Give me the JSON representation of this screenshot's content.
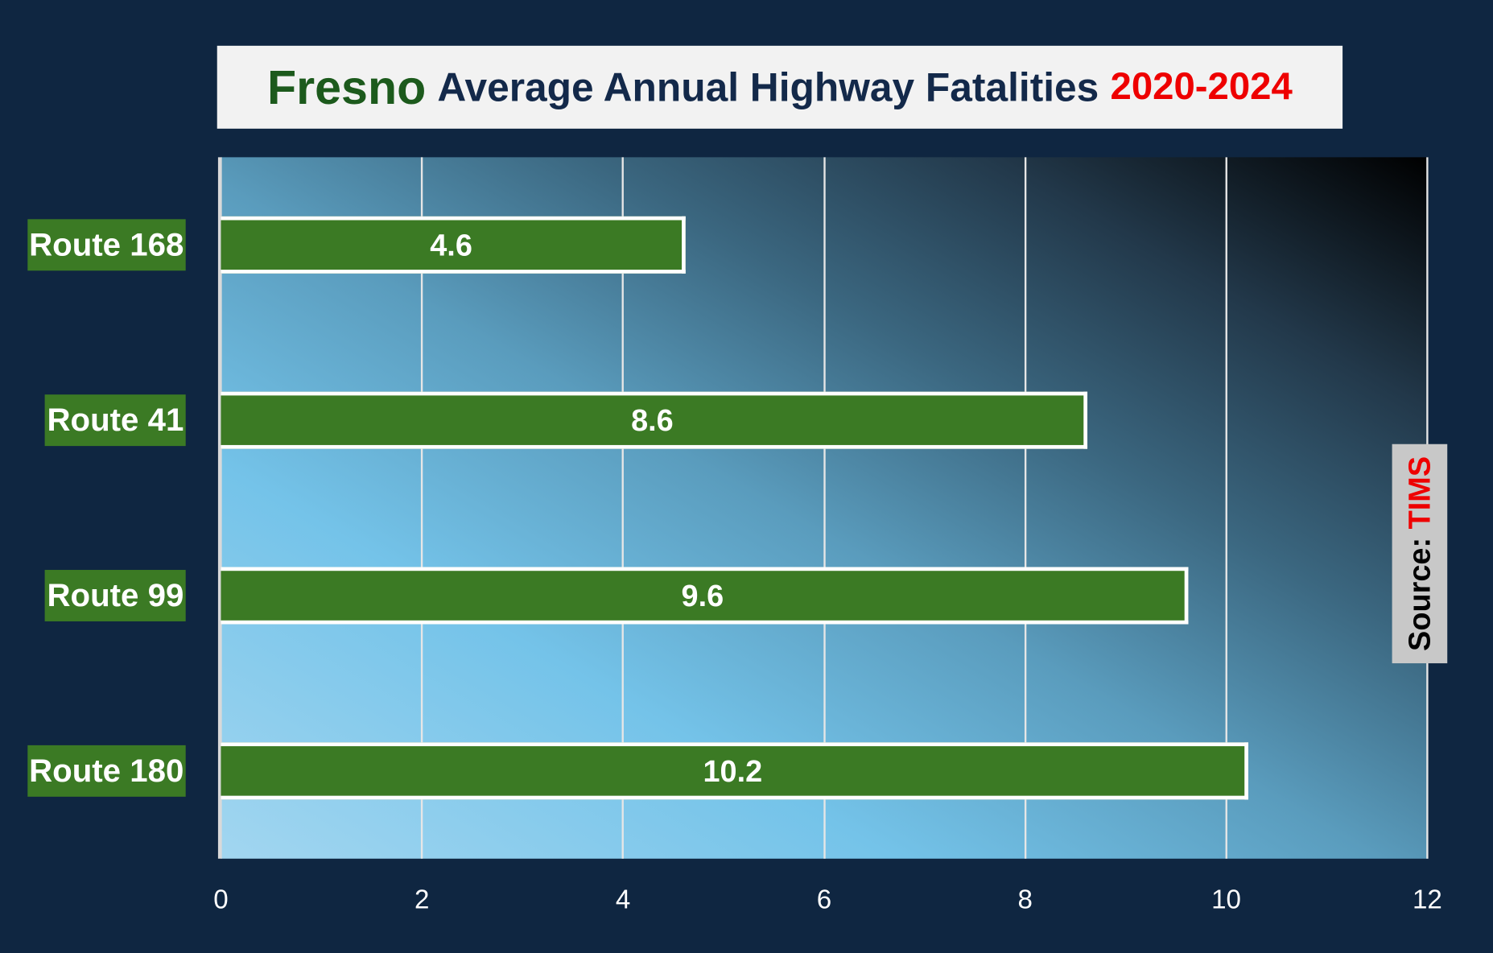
{
  "chart_data": {
    "type": "bar",
    "orientation": "horizontal",
    "title": {
      "place": "Fresno",
      "main": "Average Annual Highway Fatalities",
      "years": "2020-2024"
    },
    "categories": [
      "Route 168",
      "Route 41",
      "Route 99",
      "Route 180"
    ],
    "values": [
      4.6,
      8.6,
      9.6,
      10.2
    ],
    "data_labels": [
      "4.6",
      "8.6",
      "9.6",
      "10.2"
    ],
    "xlim": [
      0,
      12
    ],
    "x_ticks": [
      "0",
      "2",
      "4",
      "6",
      "8",
      "10",
      "12"
    ],
    "grid": true,
    "source": {
      "label": "Source:",
      "value": "TIMS"
    },
    "colors": {
      "bar": "#3b7a24",
      "background": "#0f2641",
      "title_place": "#1c5a1c",
      "title_years": "#ee0000"
    }
  }
}
